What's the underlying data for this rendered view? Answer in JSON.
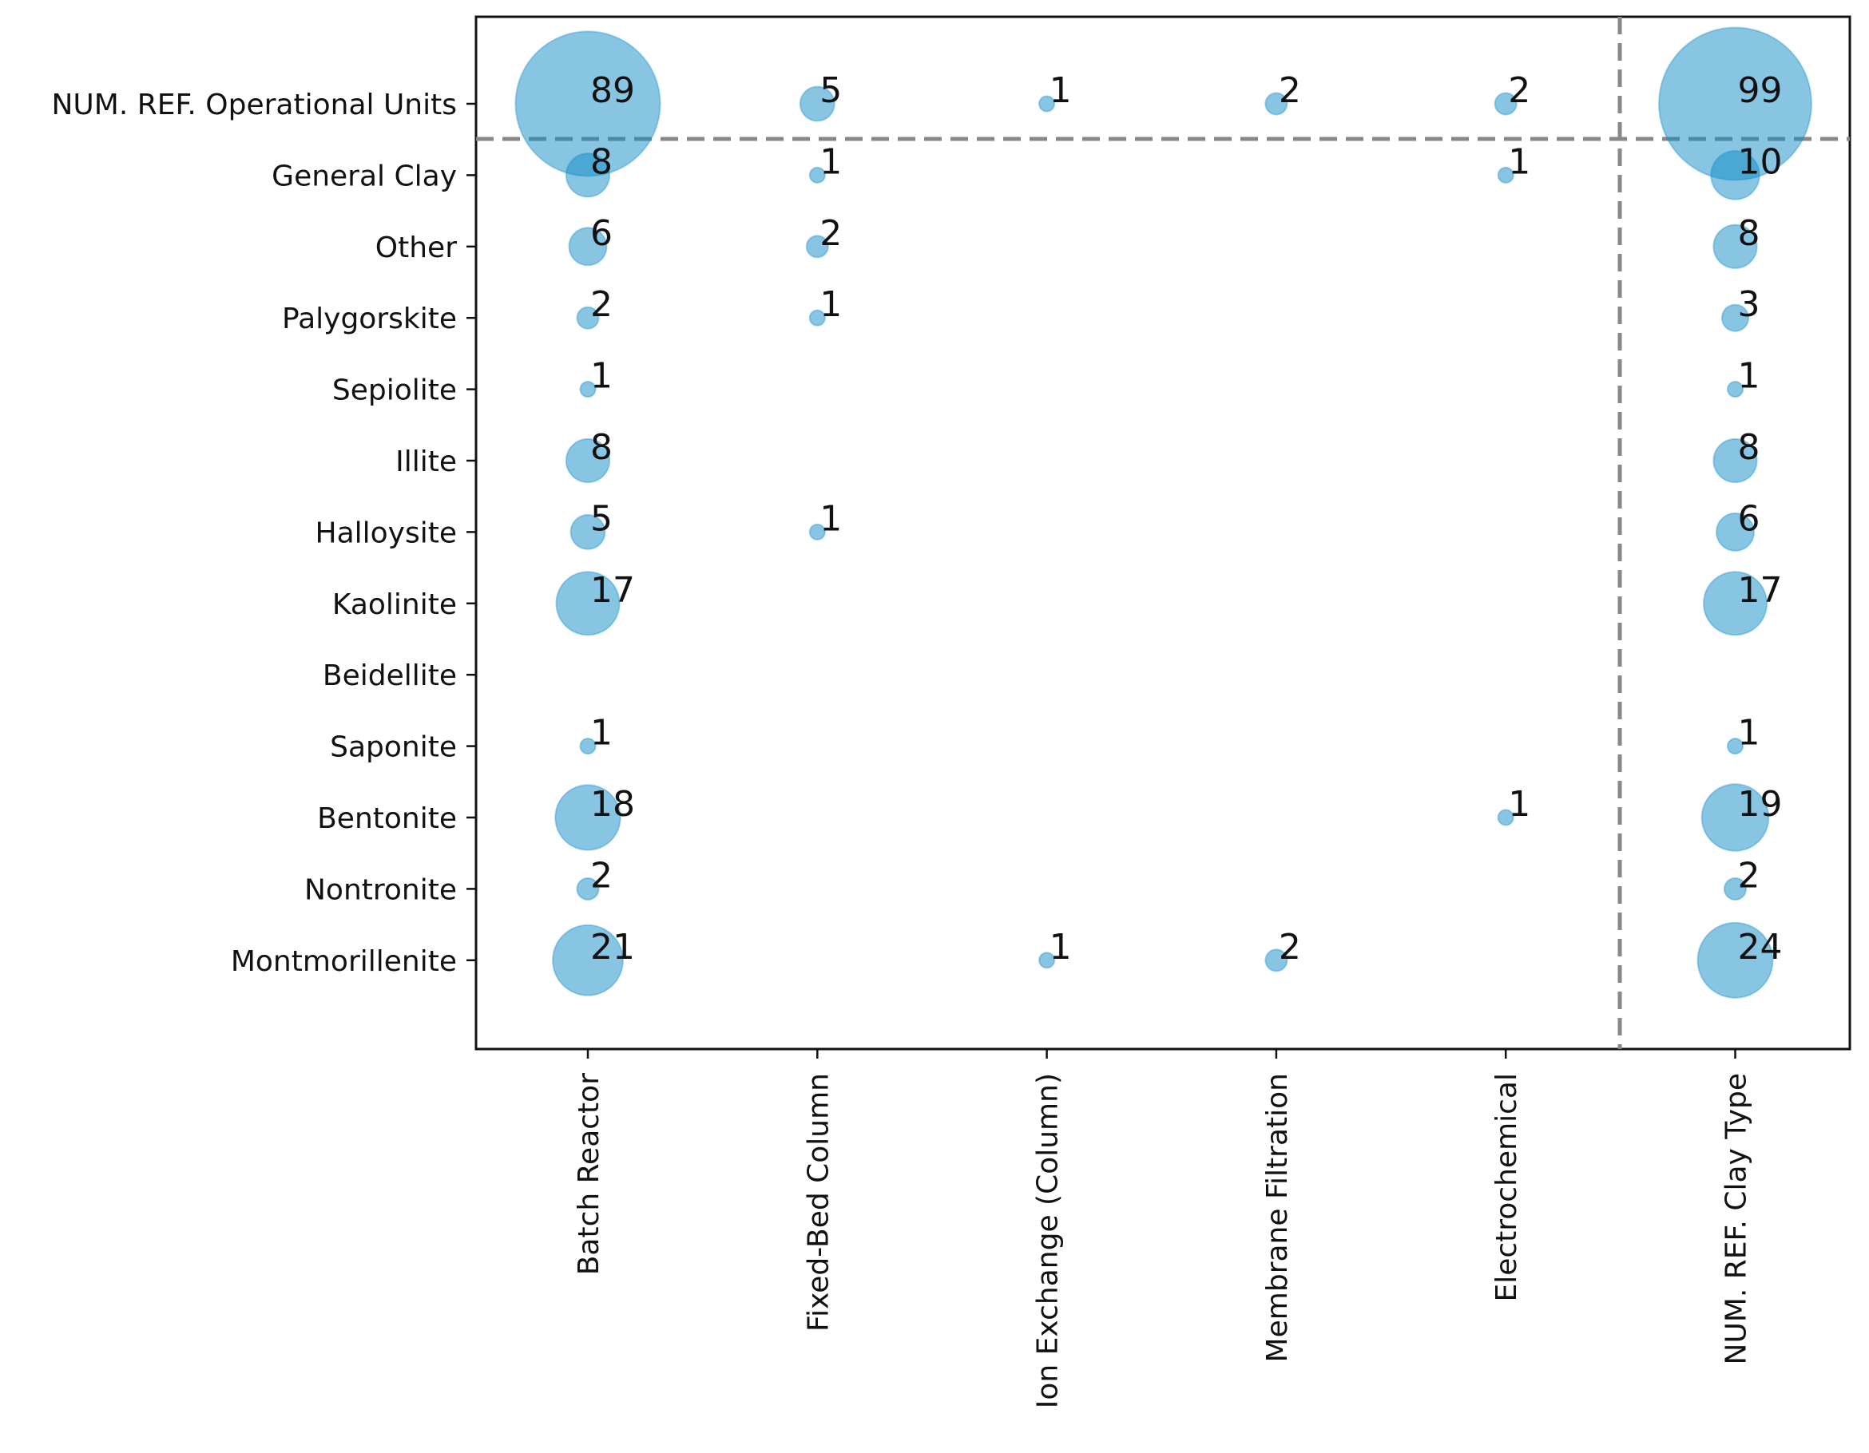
{
  "chart_data": {
    "type": "bubble-matrix",
    "x_categories": [
      "Batch Reactor",
      "Fixed-Bed Column",
      "Ion Exchange (Column)",
      "Membrane Filtration",
      "Electrochemical",
      "NUM. REF. Clay Type"
    ],
    "y_categories": [
      "NUM. REF. Operational Units",
      "General Clay",
      "Other",
      "Palygorskite",
      "Sepiolite",
      "Illite",
      "Halloysite",
      "Kaolinite",
      "Beidellite",
      "Saponite",
      "Bentonite",
      "Nontronite",
      "Montmorillenite"
    ],
    "values": [
      [
        89,
        5,
        1,
        2,
        2,
        99
      ],
      [
        8,
        1,
        null,
        null,
        1,
        10
      ],
      [
        6,
        2,
        null,
        null,
        null,
        8
      ],
      [
        2,
        1,
        null,
        null,
        null,
        3
      ],
      [
        1,
        null,
        null,
        null,
        null,
        1
      ],
      [
        8,
        null,
        null,
        null,
        null,
        8
      ],
      [
        5,
        1,
        null,
        null,
        null,
        6
      ],
      [
        17,
        null,
        null,
        null,
        null,
        17
      ],
      [
        null,
        null,
        null,
        null,
        null,
        null
      ],
      [
        1,
        null,
        null,
        null,
        null,
        1
      ],
      [
        18,
        null,
        null,
        null,
        1,
        19
      ],
      [
        2,
        null,
        null,
        null,
        null,
        2
      ],
      [
        21,
        null,
        1,
        2,
        null,
        24
      ]
    ],
    "color": "#0f8cc8"
  }
}
